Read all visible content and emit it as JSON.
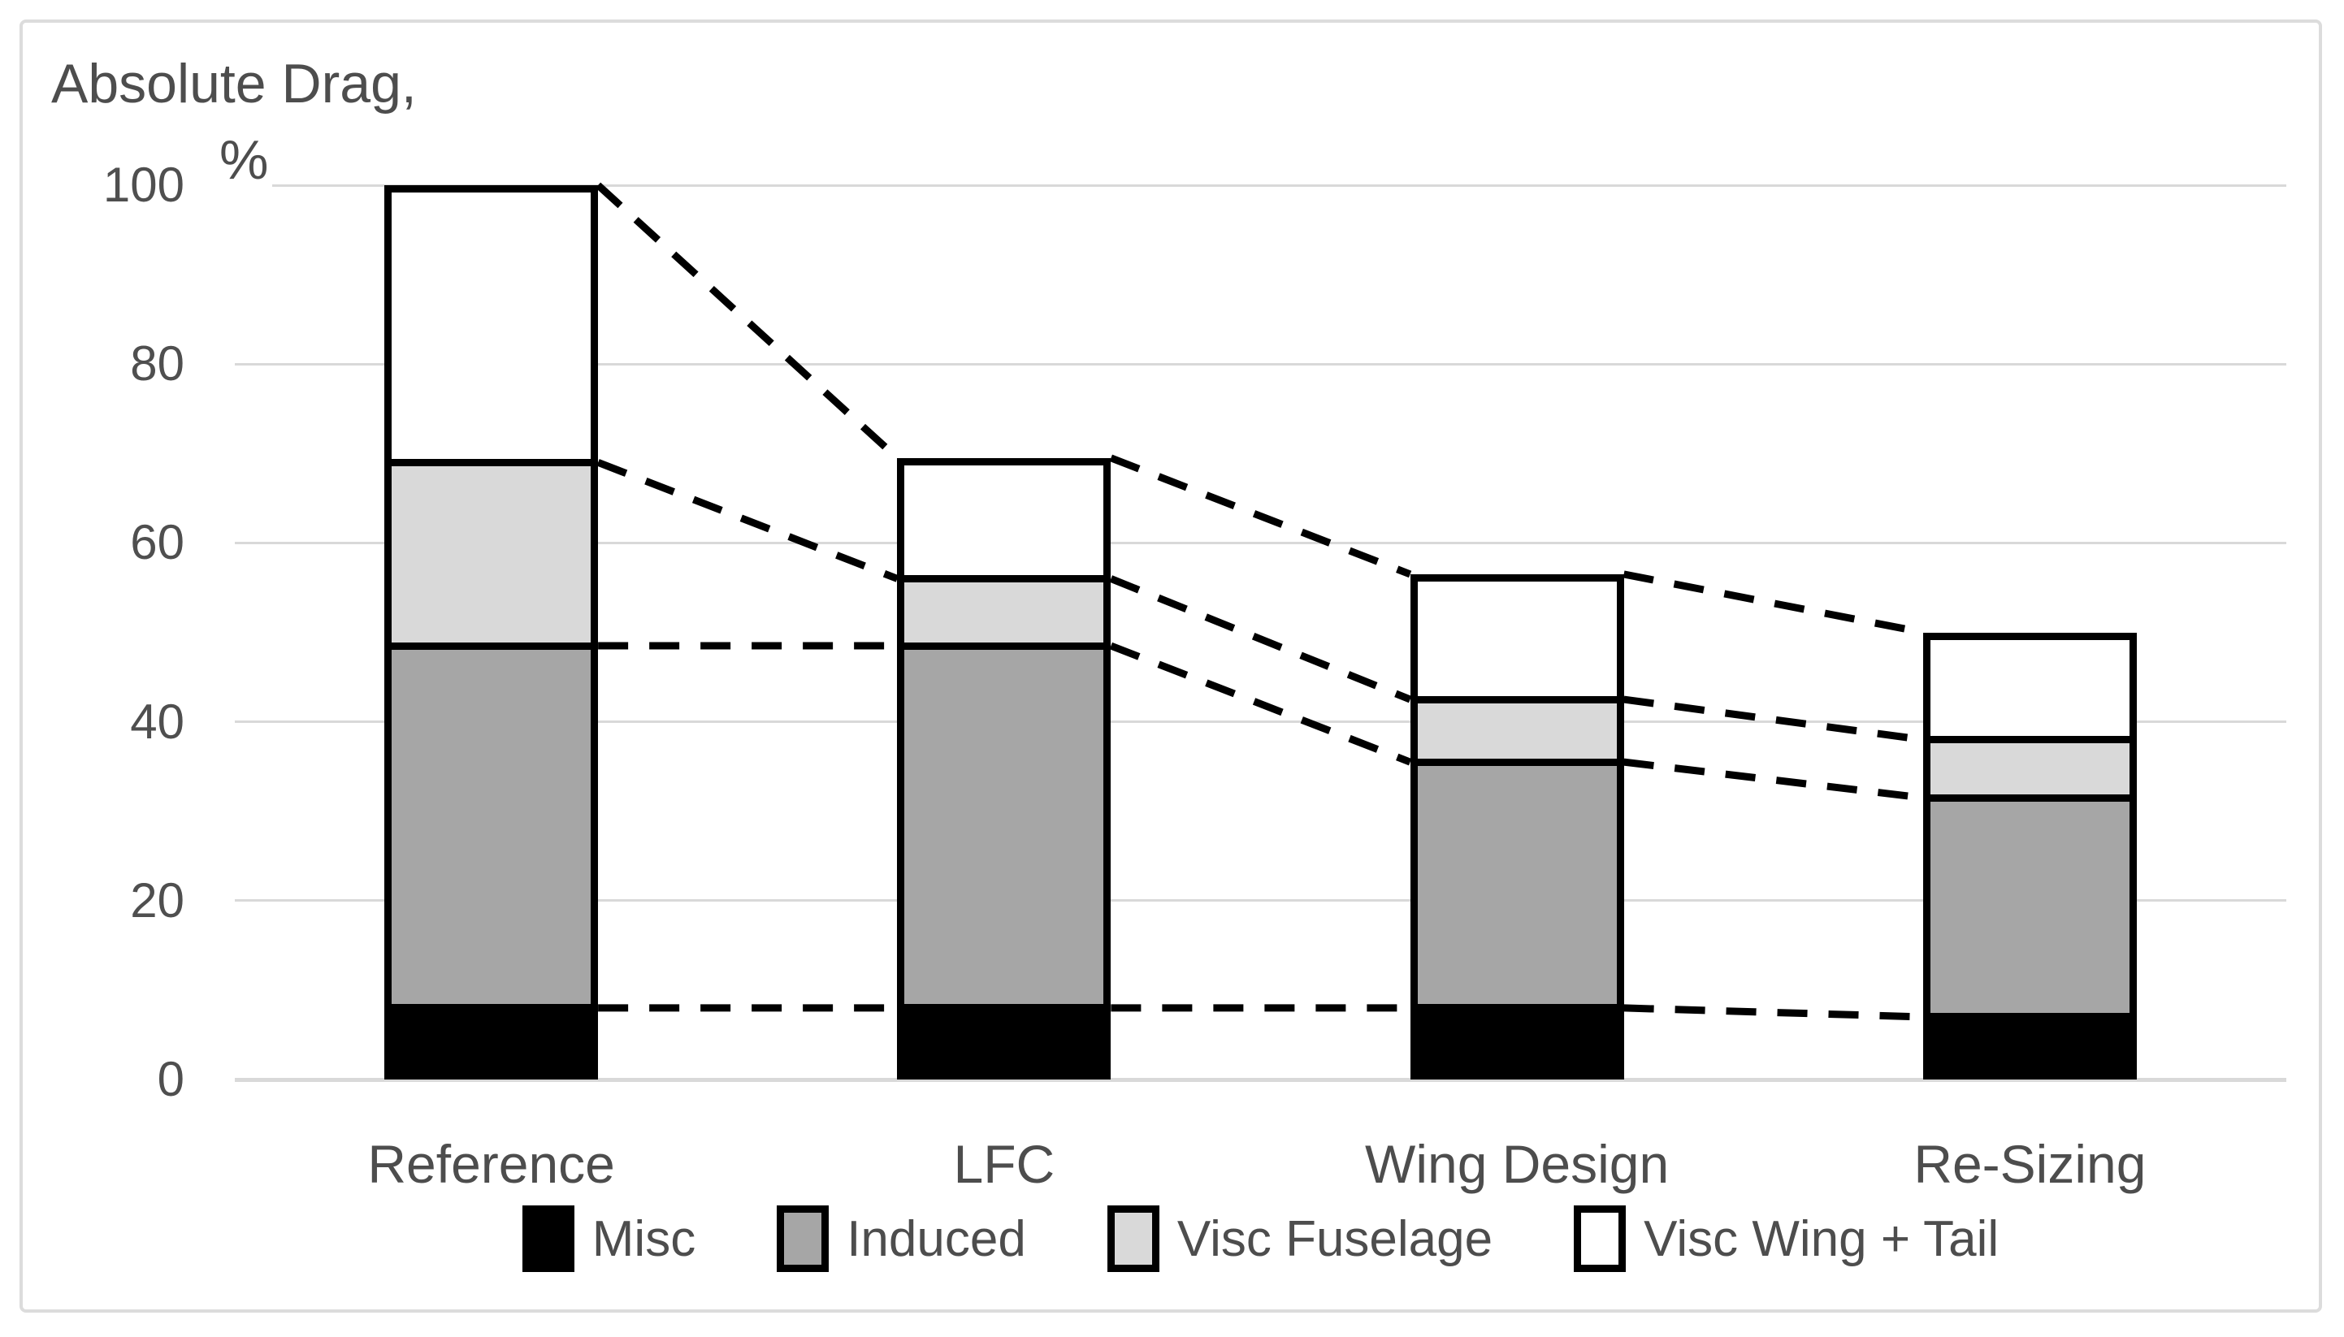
{
  "title": {
    "line1": "Absolute Drag,",
    "unit": "%"
  },
  "chart_data": {
    "type": "bar",
    "stacked": true,
    "title": "Absolute Drag, %",
    "categories": [
      "Reference",
      "LFC",
      "Wing Design",
      "Re-Sizing"
    ],
    "series": [
      {
        "name": "Misc",
        "color": "#000000",
        "values": [
          8,
          8,
          8,
          7
        ]
      },
      {
        "name": "Induced",
        "color": "#a6a6a6",
        "values": [
          40.5,
          40.5,
          27.5,
          24.5
        ]
      },
      {
        "name": "Visc Fuselage",
        "color": "#d9d9d9",
        "values": [
          20.5,
          7.5,
          7,
          6.5
        ]
      },
      {
        "name": "Visc Wing + Tail",
        "color": "#ffffff",
        "values": [
          31,
          13.5,
          14,
          12
        ]
      }
    ],
    "stack_totals": [
      100,
      69.5,
      56.5,
      50
    ],
    "segment_boundaries": [
      [
        8,
        48.5,
        69,
        100
      ],
      [
        8,
        48.5,
        56,
        69.5
      ],
      [
        8,
        35.5,
        42.5,
        56.5
      ],
      [
        7,
        31.5,
        38,
        50
      ]
    ],
    "yticks": [
      0,
      20,
      40,
      60,
      80,
      100
    ],
    "ylim": [
      0,
      100
    ],
    "grid": true,
    "legend_position": "bottom",
    "connectors": {
      "style": "dashed",
      "links_segment_boundaries_between_adjacent_bars": true
    }
  },
  "colors": {
    "background": "#ffffff",
    "text": "#4d4d4d",
    "gridline": "#d9d9d9",
    "bar_border": "#000000",
    "connector": "#000000",
    "frame_border": "#dcdcdc"
  }
}
